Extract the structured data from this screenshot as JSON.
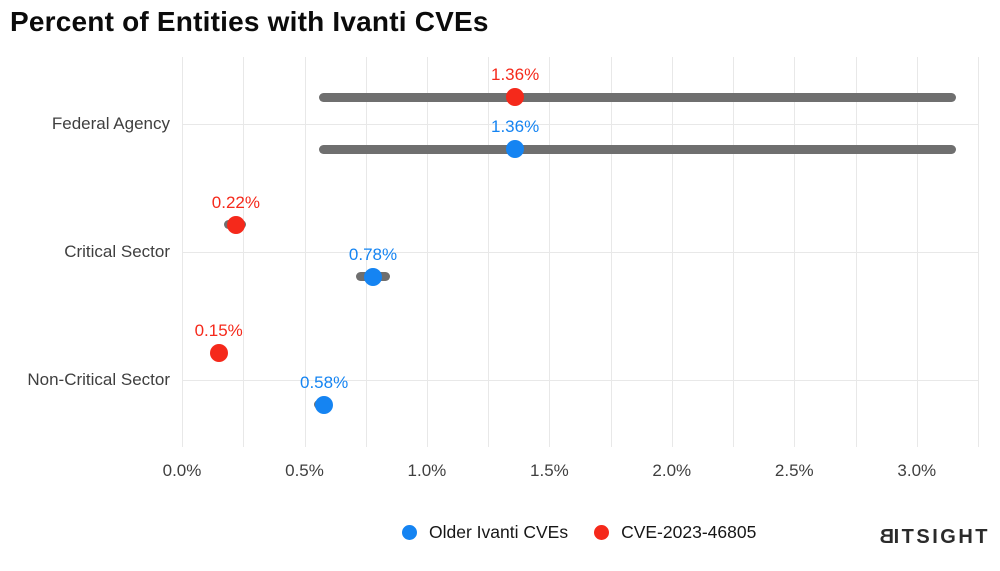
{
  "title": "Percent of Entities with Ivanti CVEs",
  "logo_text": "BITSIGHT",
  "colors": {
    "blue": "#1584f2",
    "red": "#f5291b",
    "error_bar": "#6f6f6f",
    "grid": "#e8e8e8",
    "axis_text": "#3f3f3f",
    "title_text": "#0b0b0b",
    "logo_text": "#2b2b2b"
  },
  "legend": {
    "items": [
      {
        "label": "Older Ivanti CVEs",
        "color": "#1584f2"
      },
      {
        "label": "CVE-2023-46805",
        "color": "#f5291b"
      }
    ]
  },
  "chart_data": {
    "type": "scatter",
    "title": "Percent of Entities with Ivanti CVEs",
    "categories": [
      "Federal Agency",
      "Critical Sector",
      "Non-Critical Sector"
    ],
    "series": [
      {
        "name": "CVE-2023-46805",
        "color": "#f5291b",
        "values": [
          1.36,
          0.22,
          0.15
        ],
        "labels": [
          "1.36%",
          "0.22%",
          "0.15%"
        ],
        "error_low": [
          0.56,
          0.17,
          null
        ],
        "error_high": [
          3.16,
          0.26,
          null
        ]
      },
      {
        "name": "Older Ivanti CVEs",
        "color": "#1584f2",
        "values": [
          1.36,
          0.78,
          0.58
        ],
        "labels": [
          "1.36%",
          "0.78%",
          "0.58%"
        ],
        "error_low": [
          0.56,
          0.71,
          0.54
        ],
        "error_high": [
          3.16,
          0.85,
          0.61
        ]
      }
    ],
    "x_tick_values": [
      0,
      0.5,
      1.0,
      1.5,
      2.0,
      2.5,
      3.0
    ],
    "x_tick_labels": [
      "0.0%",
      "0.5%",
      "1.0%",
      "1.5%",
      "2.0%",
      "2.5%",
      "3.0%"
    ],
    "xlim": [
      0,
      3.25
    ],
    "minor_grid_step": 0.25,
    "grid": "on",
    "legend_position": "bottom"
  }
}
